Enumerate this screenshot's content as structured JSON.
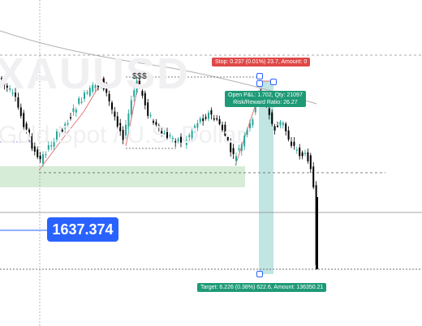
{
  "watermark": {
    "symbol": "XAUUSD",
    "subtitle": "Gold Spot / U.S. Dollar"
  },
  "labels": {
    "liquidity_marker": "$$$",
    "crosshair_price": "1637.374"
  },
  "position_tool": {
    "stop_text": "Stop: 0.237 (0.01%) 23.7, Amount: 0",
    "open_pl_text": "Open P&L: 1.702, Qty: 21097",
    "rr_text": "Risk/Reward Ratio: 26.27",
    "target_text": "Target: 6.226 (0.38%) 622.6, Amount: 136350.21"
  },
  "colors": {
    "bullish": "#26a69a",
    "bearish": "#000000",
    "stop_tag": "#e04848",
    "target_tag": "#1f9a77",
    "accent": "#2962ff",
    "demand_zone": "#c8e6c9",
    "moving_average": "#b0b0b0"
  }
}
